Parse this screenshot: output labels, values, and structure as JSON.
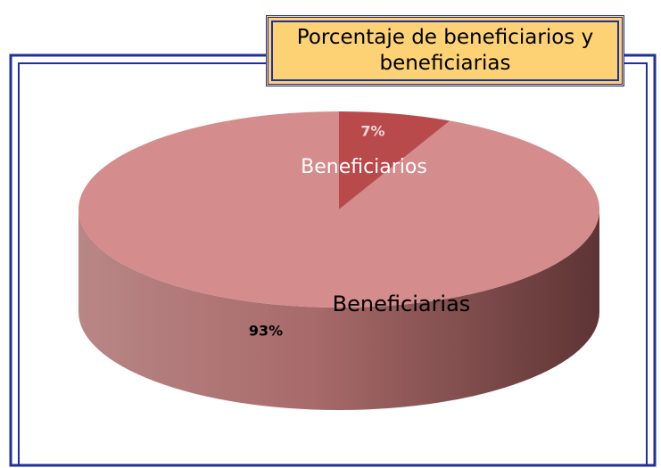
{
  "chart_data": {
    "type": "pie",
    "title": "Porcentaje de beneficiarios y beneficiarias",
    "categories": [
      "Beneficiarios",
      "Beneficiarias"
    ],
    "values": [
      7,
      93
    ],
    "value_labels": [
      "7%",
      "93%"
    ],
    "colors": [
      "#b94a4c",
      "#d48c8c"
    ]
  }
}
